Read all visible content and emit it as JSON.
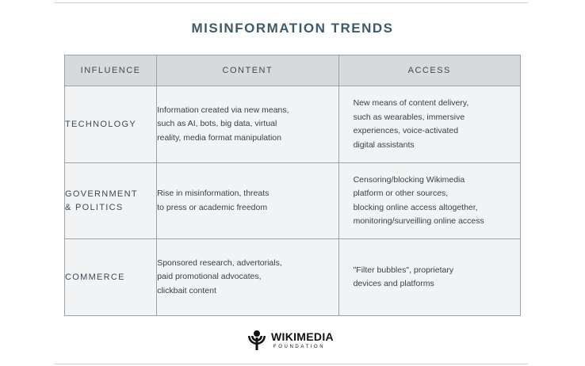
{
  "title": "MISINFORMATION TRENDS",
  "columns": [
    "INFLUENCE",
    "CONTENT",
    "ACCESS"
  ],
  "rows": [
    {
      "influence": "TECHNOLOGY",
      "content": "Information created via new means,\nsuch as AI, bots, big data, virtual\nreality, media format manipulation",
      "access": "New means of content delivery,\nsuch as wearables, immersive\nexperiences, voice-activated\ndigital assistants"
    },
    {
      "influence": "GOVERNMENT\n& POLITICS",
      "content": "Rise in misinformation, threats\nto press or academic freedom",
      "access": "Censoring/blocking Wikimedia\nplatform or other sources,\nblocking online access altogether,\nmonitoring/surveilling online access"
    },
    {
      "influence": "COMMERCE",
      "content": "Sponsored research, advertorials,\npaid promotional advocates,\nclickbait content",
      "access": "\"Filter bubbles\", proprietary\ndevices and platforms"
    }
  ],
  "logo": {
    "wordmark": "WIKIMEDIA",
    "subtitle": "FOUNDATION",
    "icon": "wikimedia-logo-icon"
  }
}
